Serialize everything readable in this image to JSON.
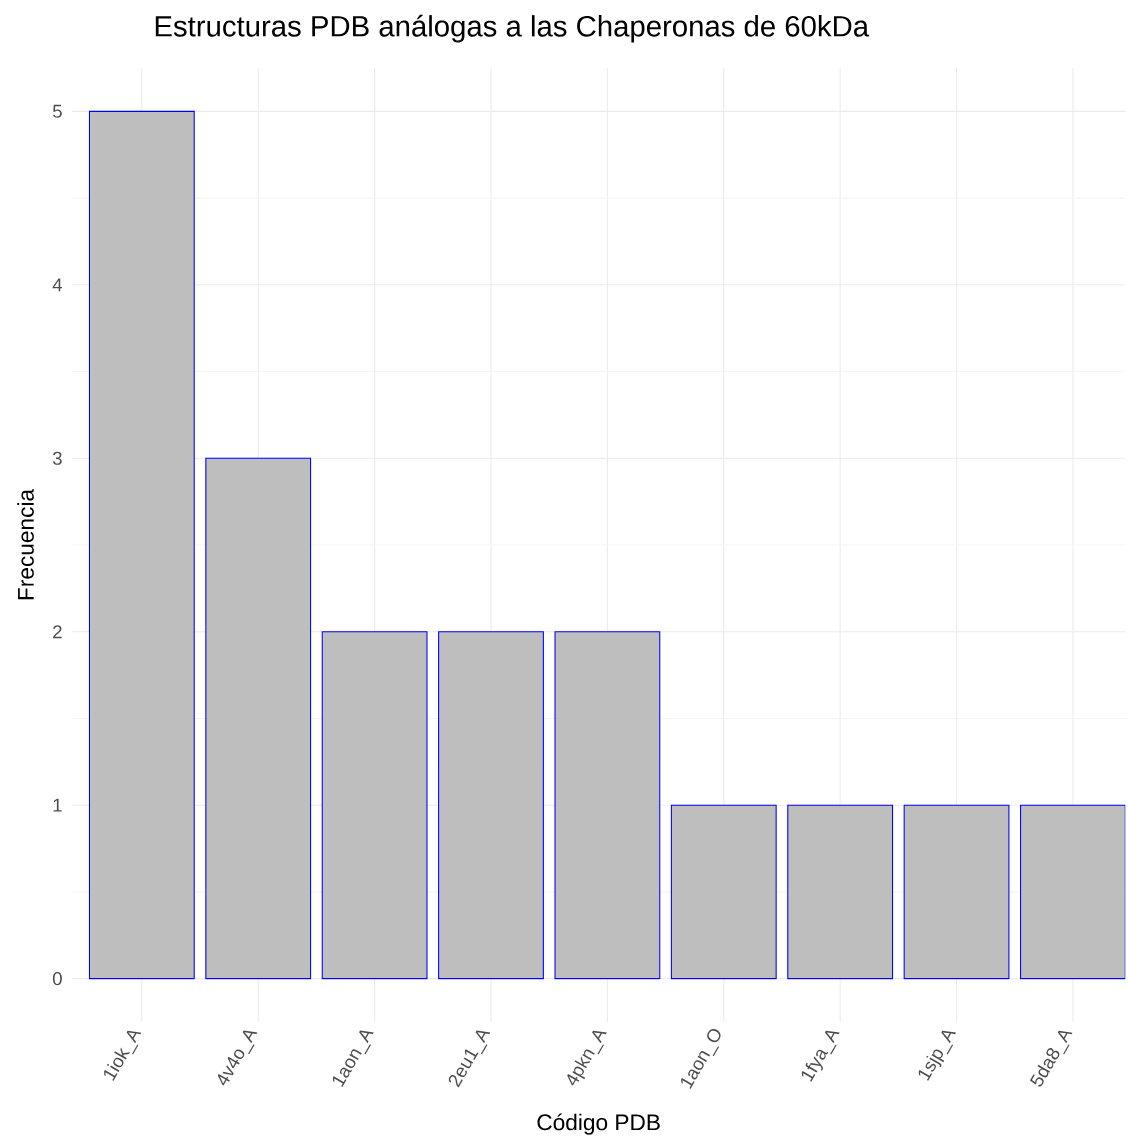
{
  "chart_data": {
    "type": "bar",
    "title": "Estructuras PDB análogas a las Chaperonas de 60kDa",
    "xlabel": "Código PDB",
    "ylabel": "Frecuencia",
    "categories": [
      "1iok_A",
      "4v4o_A",
      "1aon_A",
      "2eu1_A",
      "4pkn_A",
      "1aon_O",
      "1fya_A",
      "1sjp_A",
      "5da8_A"
    ],
    "values": [
      5,
      3,
      2,
      2,
      2,
      1,
      1,
      1,
      1
    ],
    "color": "#bebebe",
    "ylim": [
      -0.25,
      5.25
    ],
    "yticks": [
      0,
      1,
      2,
      3,
      4,
      5
    ],
    "grid": true
  }
}
